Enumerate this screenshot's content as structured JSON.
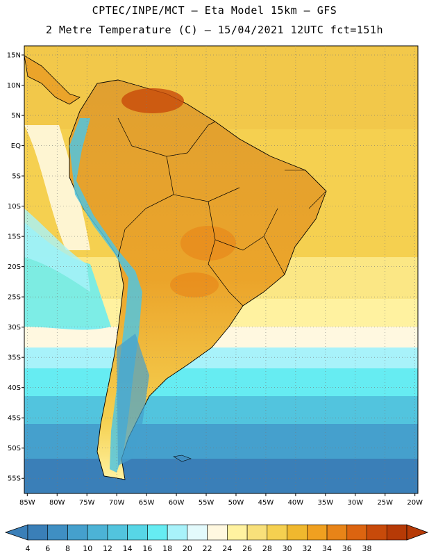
{
  "header": {
    "line1": "CPTEC/INPE/MCT –  Eta Model 15km – GFS",
    "line2": "2 Metre Temperature (C) – 15/04/2021 12UTC fct=151h"
  },
  "map": {
    "lat_labels": [
      "15N",
      "10N",
      "5N",
      "EQ",
      "5S",
      "10S",
      "15S",
      "20S",
      "25S",
      "30S",
      "35S",
      "40S",
      "45S",
      "50S",
      "55S"
    ],
    "lat_values": [
      15,
      10,
      5,
      0,
      -5,
      -10,
      -15,
      -20,
      -25,
      -30,
      -35,
      -40,
      -45,
      -50,
      -55
    ],
    "lon_labels": [
      "85W",
      "80W",
      "75W",
      "70W",
      "65W",
      "60W",
      "55W",
      "50W",
      "45W",
      "40W",
      "35W",
      "30W",
      "25W",
      "20W"
    ],
    "lon_values": [
      -85,
      -80,
      -75,
      -70,
      -65,
      -60,
      -55,
      -50,
      -45,
      -40,
      -35,
      -30,
      -25,
      -20
    ],
    "lat_range": [
      -57.5,
      16.5
    ],
    "lon_range": [
      -85.5,
      -19.5
    ]
  },
  "colorbar": {
    "labels": [
      "4",
      "6",
      "8",
      "10",
      "12",
      "14",
      "16",
      "18",
      "20",
      "22",
      "24",
      "26",
      "28",
      "30",
      "32",
      "34",
      "36",
      "38"
    ],
    "colors": [
      "#3a7fb8",
      "#3f8fc3",
      "#45a0cd",
      "#4cb3d6",
      "#52c4de",
      "#57d6e6",
      "#66ecf2",
      "#a8f2fa",
      "#e3fafc",
      "#fff8e0",
      "#fff2a0",
      "#f8e07a",
      "#f5d050",
      "#f0b82e",
      "#f0a020",
      "#e88418",
      "#dc6410",
      "#c84a0a",
      "#b63a06"
    ]
  }
}
